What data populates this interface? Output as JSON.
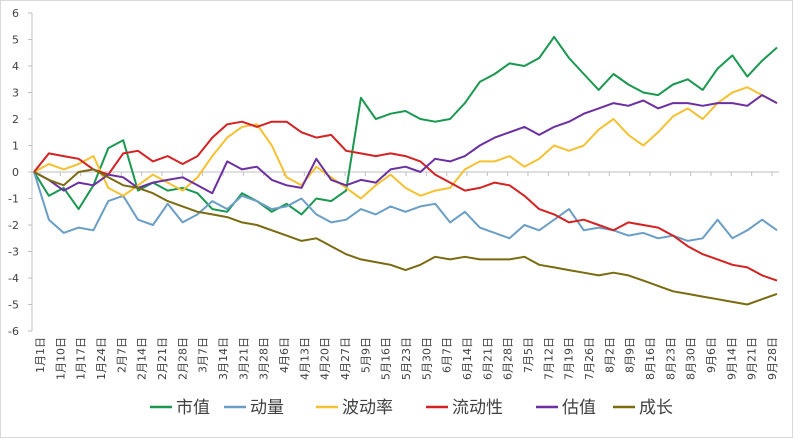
{
  "chart_data": {
    "type": "line",
    "title": "",
    "xlabel": "",
    "ylabel": "",
    "ylim": [
      -6,
      6
    ],
    "yticks": [
      -6,
      -5,
      -4,
      -3,
      -2,
      -1,
      0,
      1,
      2,
      3,
      4,
      5,
      6
    ],
    "grid": false,
    "legend_position": "bottom",
    "x_tick_labels": [
      "1月1日",
      "1月10日",
      "1月17日",
      "1月24日",
      "2月7日",
      "2月14日",
      "2月21日",
      "2月28日",
      "3月7日",
      "3月14日",
      "3月21日",
      "3月28日",
      "4月6日",
      "4月13日",
      "4月20日",
      "4月27日",
      "5月9日",
      "5月16日",
      "5月23日",
      "5月30日",
      "6月7日",
      "6月14日",
      "6月21日",
      "6月28日",
      "7月5日",
      "7月12日",
      "7月19日",
      "7月26日",
      "8月2日",
      "8月9日",
      "8月16日",
      "8月23日",
      "8月30日",
      "9月6日",
      "9月14日",
      "9月21日",
      "9月28日"
    ],
    "series": [
      {
        "name": "市值",
        "color": "#1a9850",
        "values": [
          0,
          -0.9,
          -0.6,
          -1.4,
          -0.5,
          0.9,
          1.2,
          -0.7,
          -0.4,
          -0.7,
          -0.6,
          -0.8,
          -1.4,
          -1.5,
          -0.8,
          -1.1,
          -1.5,
          -1.2,
          -1.6,
          -1.0,
          -1.1,
          -0.7,
          2.8,
          2.0,
          2.2,
          2.3,
          2.0,
          1.9,
          2.0,
          2.6,
          3.4,
          3.7,
          4.1,
          4.0,
          4.3,
          5.1,
          4.3,
          3.7,
          3.1,
          3.7,
          3.3,
          3.0,
          2.9,
          3.3,
          3.5,
          3.1,
          3.9,
          4.4,
          3.6,
          4.2,
          4.7
        ]
      },
      {
        "name": "动量",
        "color": "#6a9ec6",
        "values": [
          0,
          -1.8,
          -2.3,
          -2.1,
          -2.2,
          -1.1,
          -0.9,
          -1.8,
          -2.0,
          -1.2,
          -1.9,
          -1.6,
          -1.1,
          -1.4,
          -0.9,
          -1.1,
          -1.4,
          -1.3,
          -1.0,
          -1.6,
          -1.9,
          -1.8,
          -1.4,
          -1.6,
          -1.3,
          -1.5,
          -1.3,
          -1.2,
          -1.9,
          -1.5,
          -2.1,
          -2.3,
          -2.5,
          -2.0,
          -2.2,
          -1.8,
          -1.4,
          -2.2,
          -2.1,
          -2.2,
          -2.4,
          -2.3,
          -2.5,
          -2.4,
          -2.6,
          -2.5,
          -1.8,
          -2.5,
          -2.2,
          -1.8,
          -2.2
        ]
      },
      {
        "name": "波动率",
        "color": "#f5c132",
        "values": [
          0,
          0.3,
          0.1,
          0.3,
          0.6,
          -0.6,
          -0.9,
          -0.5,
          -0.1,
          -0.4,
          -0.7,
          -0.2,
          0.6,
          1.3,
          1.7,
          1.8,
          1.0,
          -0.2,
          -0.5,
          0.2,
          -0.2,
          -0.6,
          -1.0,
          -0.5,
          -0.1,
          -0.6,
          -0.9,
          -0.7,
          -0.6,
          0.1,
          0.4,
          0.4,
          0.6,
          0.2,
          0.5,
          1.0,
          0.8,
          1.0,
          1.6,
          2.0,
          1.4,
          1.0,
          1.5,
          2.1,
          2.4,
          2.0,
          2.6,
          3.0,
          3.2,
          2.9,
          2.6
        ]
      },
      {
        "name": "流动性",
        "color": "#d42121",
        "values": [
          0,
          0.7,
          0.6,
          0.5,
          0.1,
          -0.1,
          0.7,
          0.8,
          0.4,
          0.6,
          0.3,
          0.6,
          1.3,
          1.8,
          1.9,
          1.7,
          1.9,
          1.9,
          1.5,
          1.3,
          1.4,
          0.8,
          0.7,
          0.6,
          0.7,
          0.6,
          0.4,
          -0.1,
          -0.4,
          -0.7,
          -0.6,
          -0.4,
          -0.5,
          -0.9,
          -1.4,
          -1.6,
          -1.9,
          -1.8,
          -2.0,
          -2.2,
          -1.9,
          -2.0,
          -2.1,
          -2.4,
          -2.8,
          -3.1,
          -3.3,
          -3.5,
          -3.6,
          -3.9,
          -4.1
        ]
      },
      {
        "name": "估值",
        "color": "#6b2fa0",
        "values": [
          0,
          -0.3,
          -0.7,
          -0.4,
          -0.5,
          -0.1,
          -0.2,
          -0.6,
          -0.4,
          -0.3,
          -0.2,
          -0.5,
          -0.8,
          0.4,
          0.1,
          0.2,
          -0.3,
          -0.5,
          -0.6,
          0.5,
          -0.3,
          -0.5,
          -0.3,
          -0.4,
          0.1,
          0.2,
          0.0,
          0.5,
          0.4,
          0.6,
          1.0,
          1.3,
          1.5,
          1.7,
          1.4,
          1.7,
          1.9,
          2.2,
          2.4,
          2.6,
          2.5,
          2.7,
          2.4,
          2.6,
          2.6,
          2.5,
          2.6,
          2.6,
          2.5,
          2.9,
          2.6
        ]
      },
      {
        "name": "成长",
        "color": "#7a6a10",
        "values": [
          0,
          -0.3,
          -0.5,
          0.0,
          0.1,
          -0.2,
          -0.5,
          -0.6,
          -0.8,
          -1.1,
          -1.3,
          -1.5,
          -1.6,
          -1.7,
          -1.9,
          -2.0,
          -2.2,
          -2.4,
          -2.6,
          -2.5,
          -2.8,
          -3.1,
          -3.3,
          -3.4,
          -3.5,
          -3.7,
          -3.5,
          -3.2,
          -3.3,
          -3.2,
          -3.3,
          -3.3,
          -3.3,
          -3.2,
          -3.5,
          -3.6,
          -3.7,
          -3.8,
          -3.9,
          -3.8,
          -3.9,
          -4.1,
          -4.3,
          -4.5,
          -4.6,
          -4.7,
          -4.8,
          -4.9,
          -5.0,
          -4.8,
          -4.6
        ]
      }
    ]
  }
}
